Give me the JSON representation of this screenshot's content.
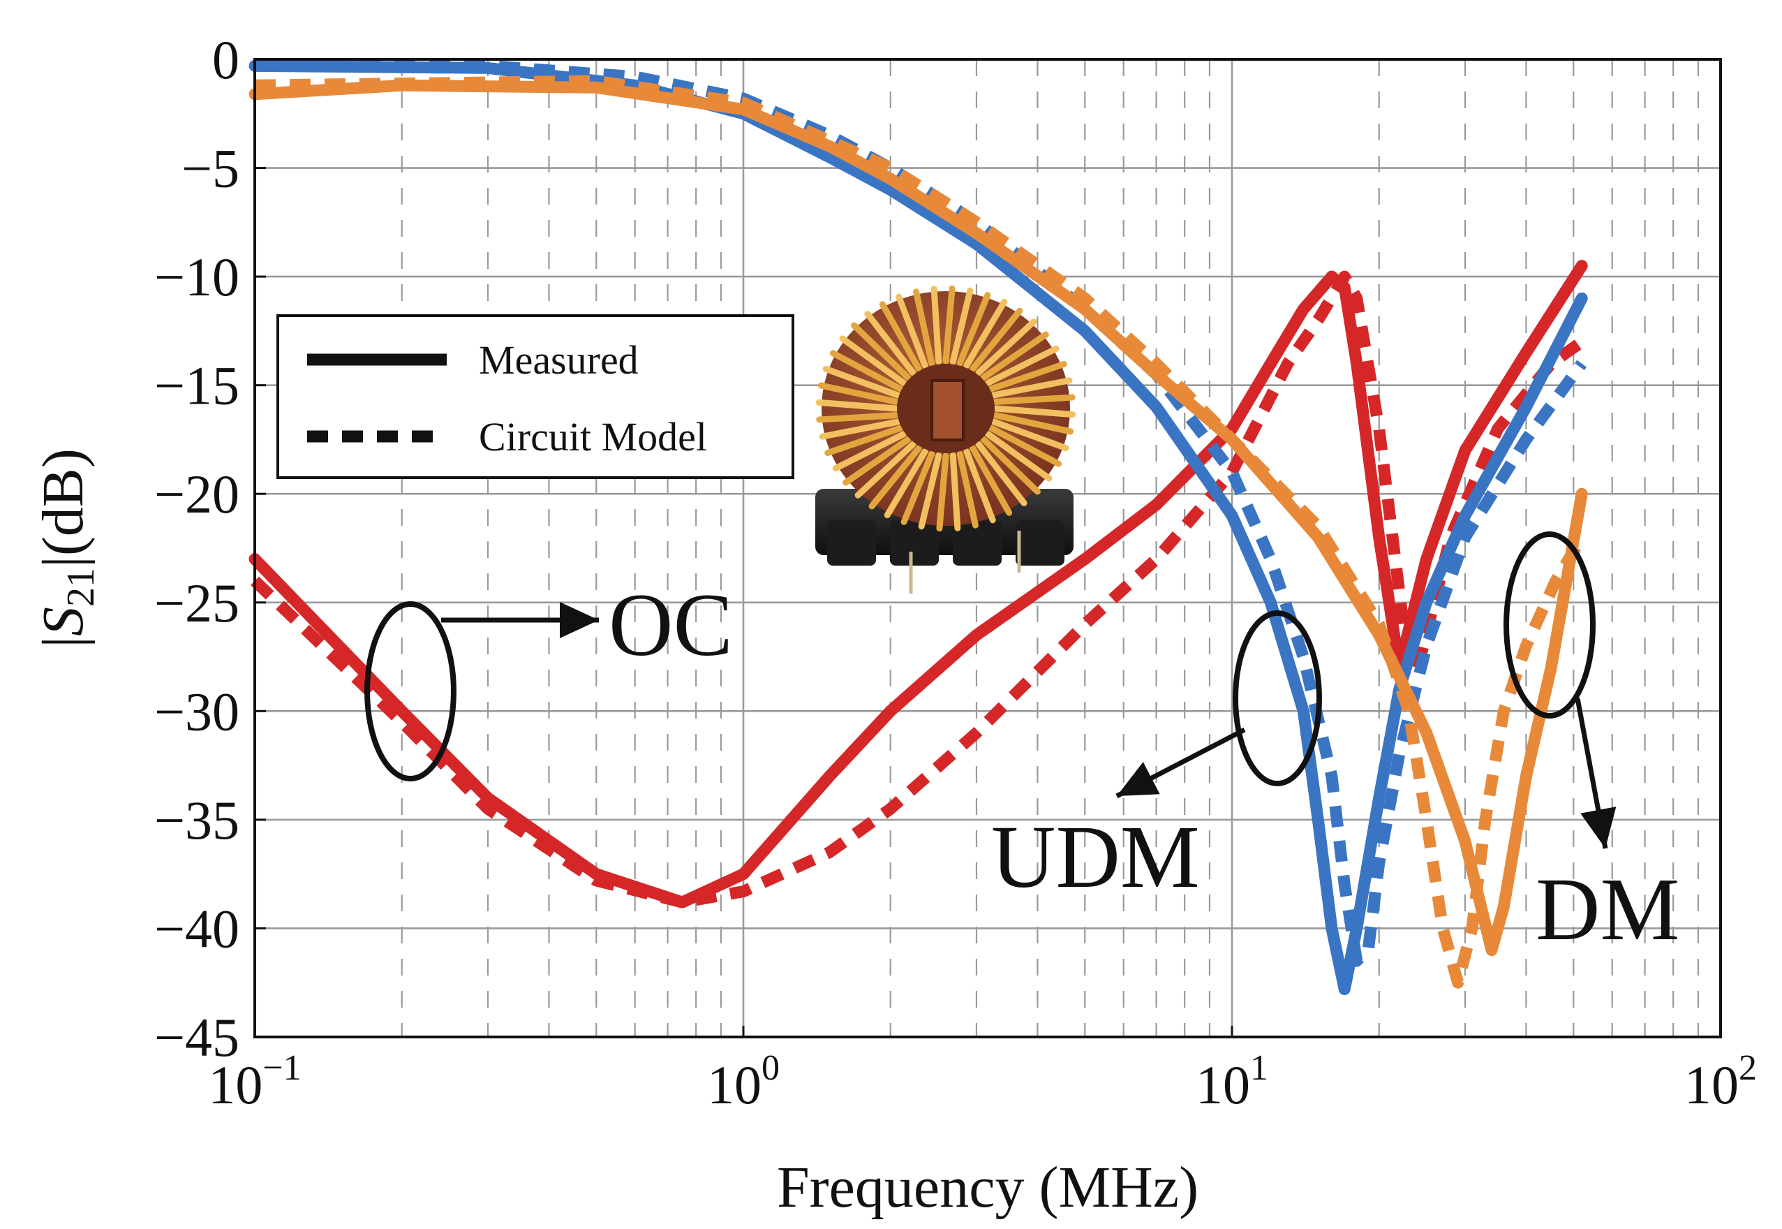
{
  "chart_data": {
    "type": "line",
    "title": "",
    "xlabel": "Frequency (MHz)",
    "ylabel": "|S21|(dB)",
    "ylabel_parts": {
      "open": "|",
      "symbol": "S",
      "subscript": "21",
      "rest": "|(dB)"
    },
    "xscale": "log",
    "xlim": [
      0.1,
      100
    ],
    "ylim": [
      -45,
      0
    ],
    "grid": true,
    "x_ticks": [
      {
        "value": 0.1,
        "base": "10",
        "exp": "−1"
      },
      {
        "value": 1,
        "base": "10",
        "exp": "0"
      },
      {
        "value": 10,
        "base": "10",
        "exp": "1"
      },
      {
        "value": 100,
        "base": "10",
        "exp": "2"
      }
    ],
    "y_ticks": [
      0,
      -5,
      -10,
      -15,
      -20,
      -25,
      -30,
      -35,
      -40,
      -45
    ],
    "y_tick_labels": [
      "0",
      "−5",
      "−10",
      "−15",
      "−20",
      "−25",
      "−30",
      "−35",
      "−40",
      "−45"
    ],
    "legend": {
      "placement": "left",
      "entries": [
        {
          "label": "Measured",
          "style": "solid"
        },
        {
          "label": "Circuit Model",
          "style": "dashed"
        }
      ]
    },
    "colors": {
      "OC": "#d62728",
      "UDM": "#3a75c4",
      "DM": "#e8893a",
      "axis": "#111111",
      "grid": "#9a9a9a"
    },
    "series": [
      {
        "name": "OC",
        "kind": "measured",
        "x": [
          0.1,
          0.2,
          0.3,
          0.5,
          0.75,
          1.0,
          1.5,
          2,
          3,
          5,
          7,
          10,
          12,
          14,
          16,
          17,
          18,
          20,
          22
        ],
        "y": [
          -23,
          -30,
          -34,
          -37.5,
          -38.8,
          -37.5,
          -33,
          -30,
          -26.5,
          -23,
          -20.5,
          -17,
          -14,
          -11.5,
          -10,
          -10.5,
          -14,
          -22,
          -28
        ]
      },
      {
        "name": "OC",
        "kind": "model",
        "x": [
          0.1,
          0.2,
          0.3,
          0.5,
          0.75,
          1.0,
          1.5,
          2,
          3,
          5,
          7,
          10,
          13,
          15,
          17,
          18,
          20,
          23
        ],
        "y": [
          -24,
          -30.5,
          -34.5,
          -37.8,
          -38.8,
          -38.3,
          -36.5,
          -34.5,
          -31,
          -26,
          -23,
          -19,
          -14,
          -12,
          -10,
          -11,
          -17,
          -28
        ]
      },
      {
        "name": "OC",
        "kind": "measured",
        "x": [
          22,
          25,
          30,
          40,
          52
        ],
        "y": [
          -28,
          -23,
          -18,
          -13.5,
          -9.5
        ]
      },
      {
        "name": "OC",
        "kind": "model",
        "x": [
          24,
          28,
          35,
          45,
          52
        ],
        "y": [
          -28,
          -22,
          -17,
          -14,
          -13
        ]
      },
      {
        "name": "UDM",
        "kind": "measured",
        "x": [
          0.1,
          0.3,
          0.6,
          1.0,
          1.5,
          2,
          3,
          5,
          7,
          10,
          12,
          14,
          15,
          16,
          17,
          18,
          20,
          22,
          25,
          30,
          40,
          52
        ],
        "y": [
          -0.3,
          -0.4,
          -1.2,
          -2.5,
          -4.5,
          -6,
          -8.5,
          -12.5,
          -16,
          -21,
          -25,
          -30,
          -35,
          -40,
          -42.8,
          -40,
          -34,
          -29,
          -25,
          -21,
          -16,
          -11
        ]
      },
      {
        "name": "UDM",
        "kind": "model",
        "x": [
          0.1,
          0.3,
          0.6,
          1.0,
          1.5,
          2,
          3,
          5,
          7,
          10,
          12,
          14,
          16,
          17,
          18,
          19,
          20,
          22,
          25,
          30,
          40,
          52
        ],
        "y": [
          -0.3,
          -0.3,
          -0.8,
          -1.8,
          -3.5,
          -5,
          -7.5,
          -11.5,
          -14.5,
          -19,
          -23,
          -27.5,
          -33,
          -38,
          -41.5,
          -41,
          -37,
          -32,
          -27,
          -22,
          -17.5,
          -14
        ]
      },
      {
        "name": "DM",
        "kind": "measured",
        "x": [
          0.1,
          0.2,
          0.5,
          1.0,
          1.5,
          2,
          3,
          5,
          7,
          10,
          15,
          20,
          25,
          30,
          34,
          36,
          40,
          45,
          52
        ],
        "y": [
          -1.6,
          -1.2,
          -1.3,
          -2.3,
          -4,
          -5.5,
          -8,
          -11.5,
          -14.5,
          -17.5,
          -22,
          -26.5,
          -31,
          -36,
          -41,
          -39,
          -33,
          -28,
          -20
        ]
      },
      {
        "name": "DM",
        "kind": "model",
        "x": [
          0.1,
          0.5,
          1.0,
          2,
          3,
          5,
          7,
          10,
          15,
          20,
          23,
          25,
          27,
          29,
          31,
          33,
          36,
          40,
          46,
          52
        ],
        "y": [
          -1.2,
          -1.0,
          -2.0,
          -5,
          -7.5,
          -11,
          -14,
          -17.5,
          -21.5,
          -26,
          -30,
          -35,
          -40,
          -42.5,
          -40,
          -35,
          -30,
          -27,
          -24,
          -22
        ]
      }
    ],
    "annotations": [
      {
        "label": "OC",
        "group": "OC"
      },
      {
        "label": "UDM",
        "group": "UDM"
      },
      {
        "label": "DM",
        "group": "DM"
      }
    ],
    "inset_image": "toroidal-choke-photo"
  }
}
